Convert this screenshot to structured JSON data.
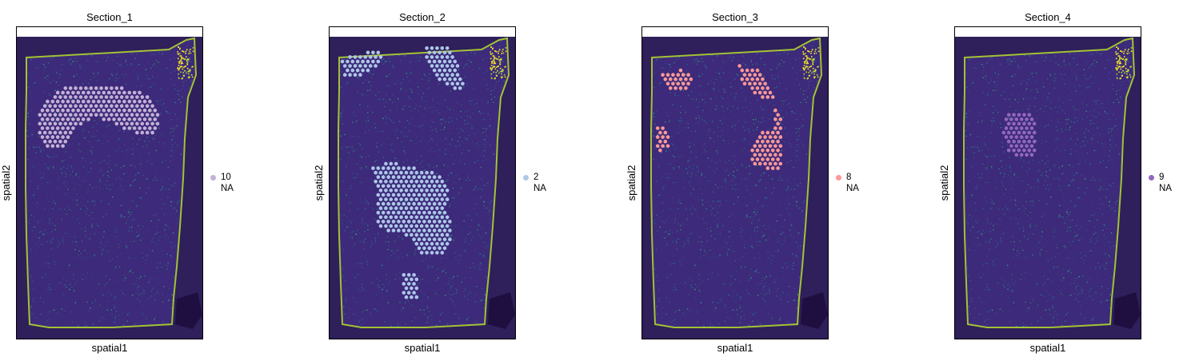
{
  "chart_data": [
    {
      "type": "scatter",
      "title": "Section_1",
      "xlabel": "spatial1",
      "ylabel": "spatial2",
      "legend": [
        {
          "label": "10",
          "color": "#c5b0d5"
        },
        {
          "label": "NA"
        }
      ],
      "highlight_color": "#c5b0d5",
      "background": "tissue image (viridis)"
    },
    {
      "type": "scatter",
      "title": "Section_2",
      "xlabel": "spatial1",
      "ylabel": "spatial2",
      "legend": [
        {
          "label": "2",
          "color": "#aec7e8"
        },
        {
          "label": "NA"
        }
      ],
      "highlight_color": "#aec7e8",
      "background": "tissue image (viridis)"
    },
    {
      "type": "scatter",
      "title": "Section_3",
      "xlabel": "spatial1",
      "ylabel": "spatial2",
      "legend": [
        {
          "label": "8",
          "color": "#ff9896"
        },
        {
          "label": "NA"
        }
      ],
      "highlight_color": "#ff9896",
      "background": "tissue image (viridis)"
    },
    {
      "type": "scatter",
      "title": "Section_4",
      "xlabel": "spatial1",
      "ylabel": "spatial2",
      "legend": [
        {
          "label": "9",
          "color": "#9467bd"
        },
        {
          "label": "NA"
        }
      ],
      "highlight_color": "#9467bd",
      "background": "tissue image (viridis)"
    }
  ]
}
